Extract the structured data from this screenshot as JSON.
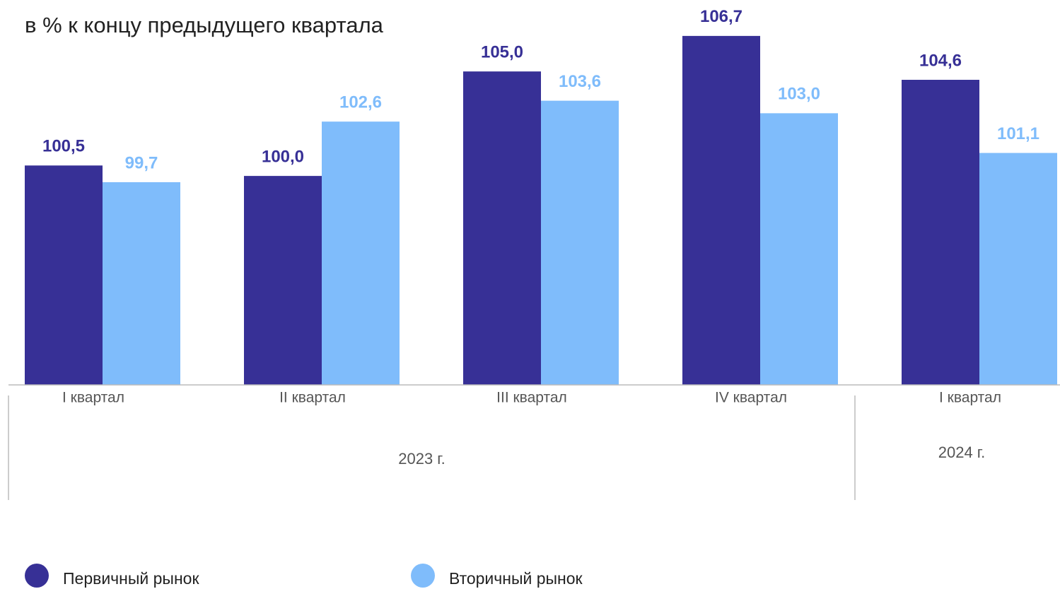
{
  "chart_data": {
    "type": "bar",
    "title": "в % к концу предыдущего квартала",
    "categories": [
      "I квартал",
      "II квартал",
      "III квартал",
      "IV квартал",
      "I квартал"
    ],
    "year_groups": [
      {
        "label": "2023 г.",
        "span": 4
      },
      {
        "label": "2024 г.",
        "span": 1
      }
    ],
    "series": [
      {
        "name": "Первичный рынок",
        "color": "#373096",
        "values": [
          100.5,
          100.0,
          105.0,
          106.7,
          104.6
        ],
        "value_labels": [
          "100,5",
          "100,0",
          "105,0",
          "106,7",
          "104,6"
        ]
      },
      {
        "name": "Вторичный рынок",
        "color": "#7fbcfb",
        "values": [
          99.7,
          102.6,
          103.6,
          103.0,
          101.1
        ],
        "value_labels": [
          "99,7",
          "102,6",
          "103,6",
          "103,0",
          "101,1"
        ]
      }
    ],
    "ylim": [
      90,
      107
    ]
  }
}
